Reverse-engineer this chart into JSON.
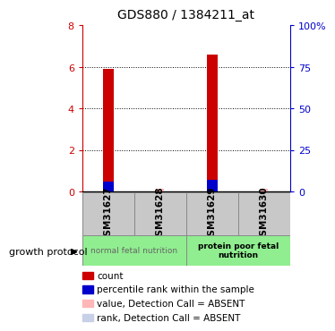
{
  "title": "GDS880 / 1384211_at",
  "samples": [
    "GSM31627",
    "GSM31628",
    "GSM31629",
    "GSM31630"
  ],
  "count_values": [
    5.9,
    0.0,
    6.6,
    0.0
  ],
  "rank_values": [
    0.48,
    0.0,
    0.55,
    0.0
  ],
  "value_absent": [
    0.0,
    0.13,
    0.0,
    0.13
  ],
  "rank_absent": [
    0.0,
    0.0,
    0.0,
    0.0
  ],
  "ylim_left": [
    0,
    8
  ],
  "ylim_right": [
    0,
    100
  ],
  "yticks_left": [
    0,
    2,
    4,
    6,
    8
  ],
  "yticks_right": [
    0,
    25,
    50,
    75,
    100
  ],
  "ytick_labels_right": [
    "0",
    "25",
    "50",
    "75",
    "100%"
  ],
  "left_axis_color": "#CC0000",
  "right_axis_color": "#0000CC",
  "sample_box_color": "#C8C8C8",
  "group1_label": "normal fetal nutrition",
  "group2_label": "protein poor fetal\nnutrition",
  "group_color": "#90EE90",
  "growth_protocol_label": "growth protocol",
  "legend_items": [
    {
      "color": "#CC0000",
      "label": "count"
    },
    {
      "color": "#0000CC",
      "label": "percentile rank within the sample"
    },
    {
      "color": "#FFB6B6",
      "label": "value, Detection Call = ABSENT"
    },
    {
      "color": "#C8D0E8",
      "label": "rank, Detection Call = ABSENT"
    }
  ]
}
